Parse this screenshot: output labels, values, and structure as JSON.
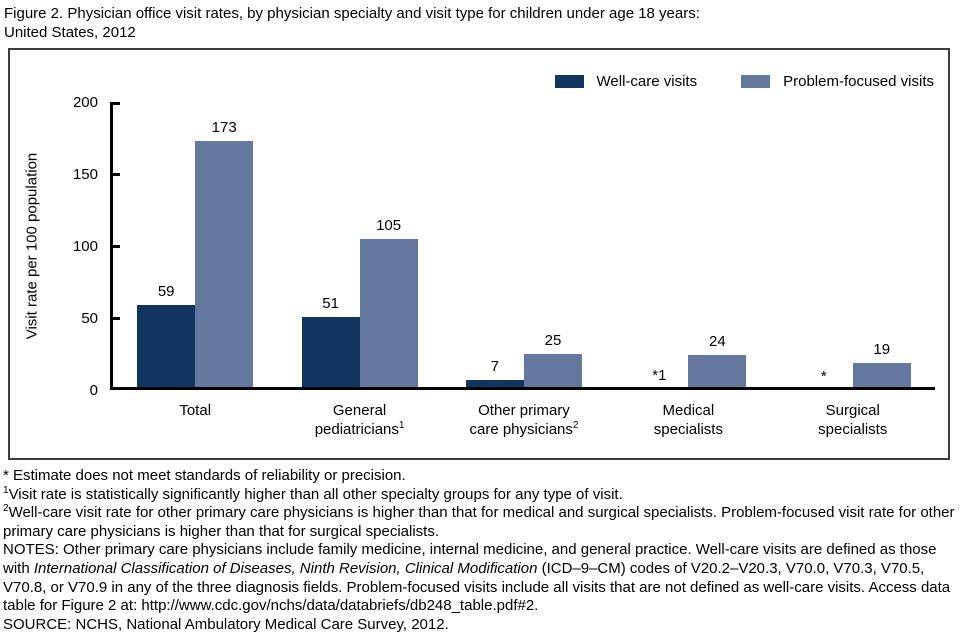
{
  "figure": {
    "title_line1": "Figure 2. Physician office visit rates, by physician specialty and visit type for children under age 18 years:",
    "title_line2": "United States, 2012"
  },
  "chart_data": {
    "type": "bar",
    "title": "Physician office visit rates, by physician specialty and visit type for children under age 18 years: United States, 2012",
    "xlabel": "",
    "ylabel": "Visit rate per 100 population",
    "ylim": [
      0,
      200
    ],
    "yticks": [
      0,
      50,
      100,
      150,
      200
    ],
    "grid": false,
    "legend_position": "top-right",
    "categories": [
      {
        "lines": [
          "Total"
        ],
        "sup": ""
      },
      {
        "lines": [
          "General",
          "pediatricians"
        ],
        "sup": "1"
      },
      {
        "lines": [
          "Other primary",
          "care physicians"
        ],
        "sup": "2"
      },
      {
        "lines": [
          "Medical",
          "specialists"
        ],
        "sup": ""
      },
      {
        "lines": [
          "Surgical",
          "specialists"
        ],
        "sup": ""
      }
    ],
    "series": [
      {
        "name": "Well-care visits",
        "color": "#12355F",
        "values": [
          59,
          51,
          7,
          1,
          0
        ],
        "labels": [
          "59",
          "51",
          "7",
          "*1",
          "*"
        ]
      },
      {
        "name": "Problem-focused visits",
        "color": "#64779F",
        "values": [
          173,
          105,
          25,
          24,
          19
        ],
        "labels": [
          "173",
          "105",
          "25",
          "24",
          "19"
        ]
      }
    ]
  },
  "colors": {
    "well_care": "#12355F",
    "problem_focused": "#64779F",
    "axis": "#000000",
    "frame_border": "#3d3d3d"
  },
  "footnotes": [
    {
      "segments": [
        {
          "style": "normal",
          "text": "* Estimate does not meet standards of reliability or precision."
        }
      ]
    },
    {
      "segments": [
        {
          "style": "sup",
          "text": "1"
        },
        {
          "style": "normal",
          "text": "Visit rate is statistically significantly higher than all other specialty groups for any type of visit."
        }
      ]
    },
    {
      "segments": [
        {
          "style": "sup",
          "text": "2"
        },
        {
          "style": "normal",
          "text": "Well-care visit rate for other primary care physicians is higher than that for medical and surgical specialists. Problem-focused visit rate for other primary care physicians is higher than that for surgical specialists."
        }
      ]
    },
    {
      "segments": [
        {
          "style": "normal",
          "text": "NOTES: Other primary care physicians include family medicine, internal medicine, and general practice. Well-care visits are defined as those with "
        },
        {
          "style": "italic",
          "text": "International Classification of Diseases, Ninth Revision, Clinical Modification"
        },
        {
          "style": "normal",
          "text": " (ICD–9–CM) codes of V20.2–V20.3, V70.0, V70.3, V70.5, V70.8, or V70.9 in any of the three diagnosis fields. Problem-focused visits include all visits that are not defined as well-care visits. Access data table for Figure 2 at: http://www.cdc.gov/nchs/data/databriefs/db248_table.pdf#2."
        }
      ]
    },
    {
      "segments": [
        {
          "style": "normal",
          "text": "SOURCE: NCHS, National Ambulatory Medical Care Survey, 2012."
        }
      ]
    }
  ]
}
